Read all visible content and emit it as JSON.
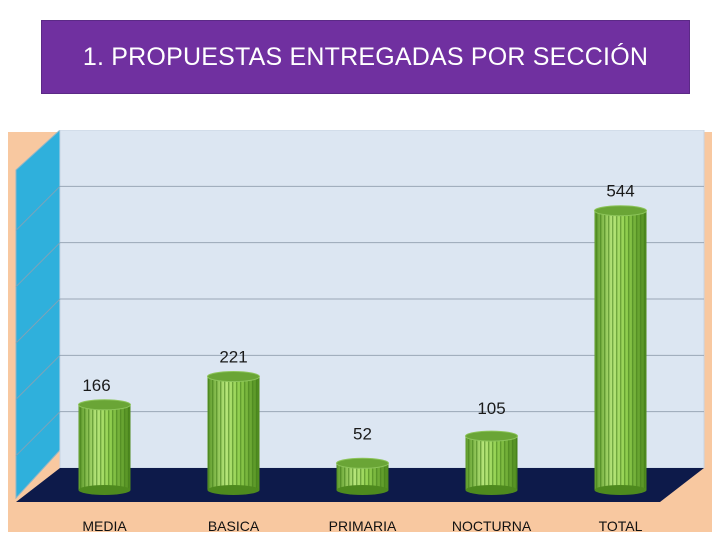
{
  "title": "1. PROPUESTAS ENTREGADAS POR SECCIÓN",
  "colors": {
    "title_bg": "#7030a0",
    "panel_bg": "#f8c8a0",
    "wall": "#dce6f2",
    "side_wall": "#2fb0dc",
    "floor": "#0d1a4a",
    "bar": "#92d050",
    "bar_dark": "#4e8a1e",
    "bar_top": "#6aa536"
  },
  "chart_data": {
    "type": "bar",
    "style": "3d-cylinder",
    "categories": [
      "MEDIA",
      "BASICA",
      "PRIMARIA",
      "NOCTURNA",
      "TOTAL"
    ],
    "values": [
      166,
      221,
      52,
      105,
      544
    ],
    "data_labels": [
      "166",
      "221",
      "52",
      "105",
      "544"
    ],
    "title": "1. PROPUESTAS ENTREGADAS POR SECCIÓN",
    "xlabel": "",
    "ylabel": "",
    "ylim": [
      0,
      600
    ],
    "grid": true,
    "legend": "none"
  }
}
